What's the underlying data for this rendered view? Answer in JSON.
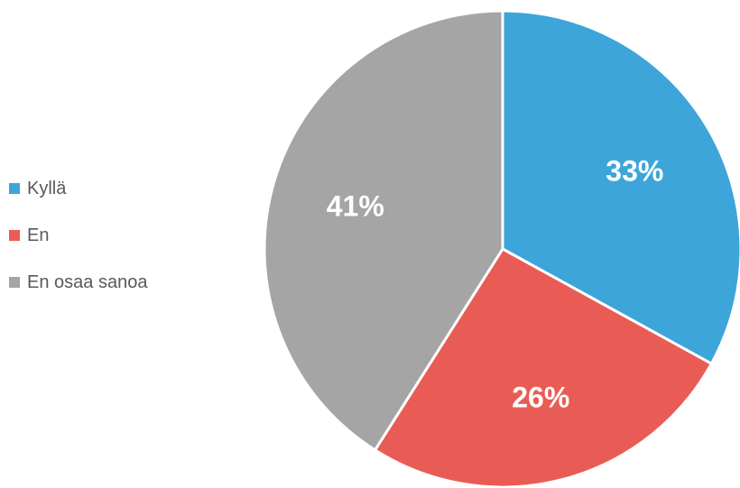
{
  "chart_data": {
    "type": "pie",
    "categories": [
      "Kyllä",
      "En",
      "En osaa sanoa"
    ],
    "values": [
      33,
      26,
      41
    ],
    "labels": [
      "33%",
      "26%",
      "41%"
    ],
    "colors": [
      "#3DA5D9",
      "#E85C55",
      "#A5A5A5"
    ],
    "start_angle_deg": 0,
    "direction": "clockwise",
    "legend_position": "left"
  }
}
